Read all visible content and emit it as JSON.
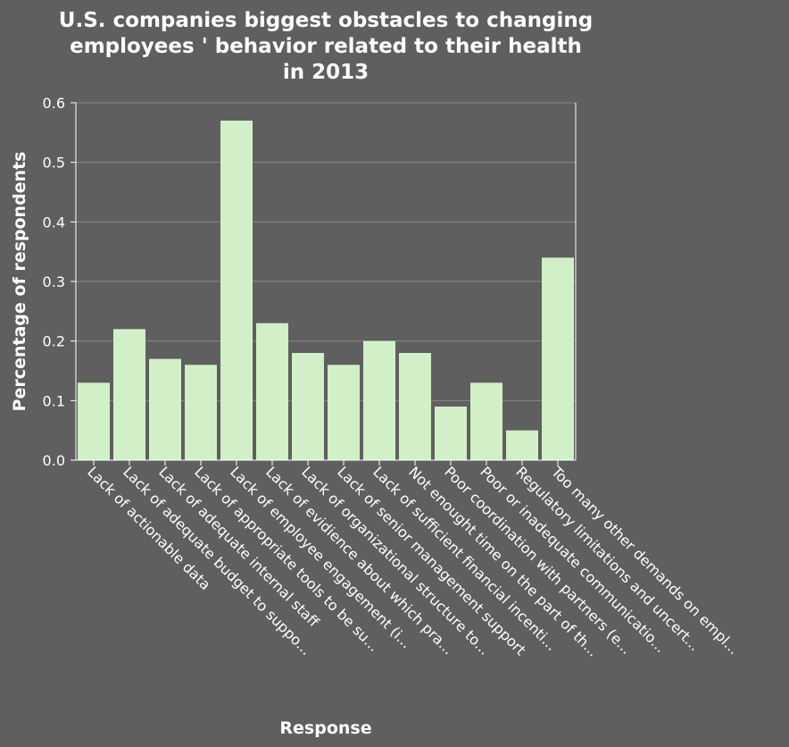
{
  "chart_data": {
    "type": "bar",
    "title_lines": [
      "U.S. companies biggest obstacles to changing",
      "employees ' behavior related to their health",
      "in 2013"
    ],
    "xlabel": "Response",
    "ylabel": "Percentage of respondents",
    "ylim": [
      0,
      0.6
    ],
    "yticks": [
      "0.0",
      "0.1",
      "0.2",
      "0.3",
      "0.4",
      "0.5",
      "0.6"
    ],
    "grid": true,
    "categories": [
      "Lack of actionable data",
      "Lack of adequate budget to suppo...",
      "Lack of adequate internal staff",
      "Lack of appropriate tools to be su...",
      "Lack of employee engagement (i...",
      "Lack of evidience about which pra...",
      "Lack of organizational structure to...",
      "Lack of senior management support",
      "Lack of sufficient financial incenti...",
      "Not enought time on the part of th...",
      "Poor coordination with partners (e...",
      "Poor or inadequate communicatio...",
      "Regulatory limitations and uncert...",
      "Too many other demands on empl..."
    ],
    "values": [
      0.13,
      0.22,
      0.17,
      0.16,
      0.57,
      0.23,
      0.18,
      0.16,
      0.2,
      0.18,
      0.09,
      0.13,
      0.05,
      0.34
    ],
    "colors": {
      "bar": "#d1f0c8",
      "background": "#5f5f5f",
      "text": "#ffffff",
      "grid": "#8a8a8a"
    }
  }
}
